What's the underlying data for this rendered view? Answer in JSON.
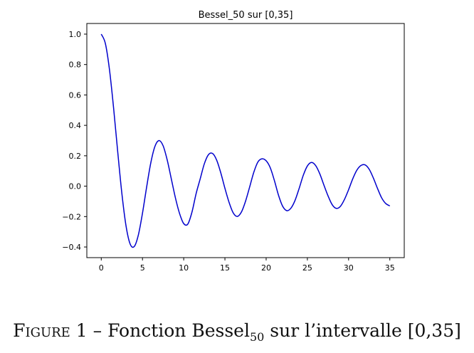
{
  "chart_data": {
    "type": "line",
    "title": "Bessel_50 sur [0,35]",
    "xlabel": "",
    "ylabel": "",
    "xlim": [
      -1.75,
      36.75
    ],
    "ylim": [
      -0.47,
      1.07
    ],
    "xticks": [
      0,
      5,
      10,
      15,
      20,
      25,
      30,
      35
    ],
    "yticks": [
      -0.4,
      -0.2,
      0.0,
      0.2,
      0.4,
      0.6,
      0.8,
      1.0
    ],
    "ytick_labels": [
      "−0.4",
      "−0.2",
      "0.0",
      "0.2",
      "0.4",
      "0.6",
      "0.8",
      "1.0"
    ],
    "grid": false,
    "series": [
      {
        "color": "#0000cc",
        "x": [
          0,
          0.5,
          1,
          1.5,
          2,
          2.5,
          3,
          3.5,
          4,
          4.5,
          5,
          5.5,
          6,
          6.5,
          7,
          7.5,
          8,
          8.5,
          9,
          9.5,
          10,
          10.5,
          11,
          11.5,
          12,
          12.5,
          13,
          13.5,
          14,
          14.5,
          15,
          15.5,
          16,
          16.5,
          17,
          17.5,
          18,
          18.5,
          19,
          19.5,
          20,
          20.5,
          21,
          21.5,
          22,
          22.5,
          23,
          23.5,
          24,
          24.5,
          25,
          25.5,
          26,
          26.5,
          27,
          27.5,
          28,
          28.5,
          29,
          29.5,
          30,
          30.5,
          31,
          31.5,
          32,
          32.5,
          33,
          33.5,
          34,
          34.5,
          35
        ],
        "y": [
          1.0,
          0.938,
          0.765,
          0.512,
          0.224,
          -0.048,
          -0.26,
          -0.38,
          -0.397,
          -0.321,
          -0.178,
          -0.007,
          0.151,
          0.26,
          0.3,
          0.266,
          0.172,
          0.047,
          -0.078,
          -0.18,
          -0.246,
          -0.249,
          -0.171,
          -0.05,
          0.048,
          0.147,
          0.207,
          0.215,
          0.171,
          0.087,
          -0.014,
          -0.106,
          -0.175,
          -0.199,
          -0.17,
          -0.099,
          -0.005,
          0.091,
          0.159,
          0.18,
          0.167,
          0.121,
          0.037,
          -0.06,
          -0.132,
          -0.161,
          -0.145,
          -0.094,
          -0.015,
          0.071,
          0.133,
          0.156,
          0.136,
          0.082,
          0.008,
          -0.063,
          -0.121,
          -0.146,
          -0.133,
          -0.087,
          -0.023,
          0.048,
          0.105,
          0.136,
          0.14,
          0.111,
          0.054,
          -0.014,
          -0.076,
          -0.114,
          -0.13
        ]
      }
    ]
  },
  "caption": {
    "figure_label": "Figure 1",
    "separator": "–",
    "text_before_sub": "Fonction Bessel",
    "subscript": "50",
    "text_after_sub": "sur l’intervalle [0,35]"
  }
}
